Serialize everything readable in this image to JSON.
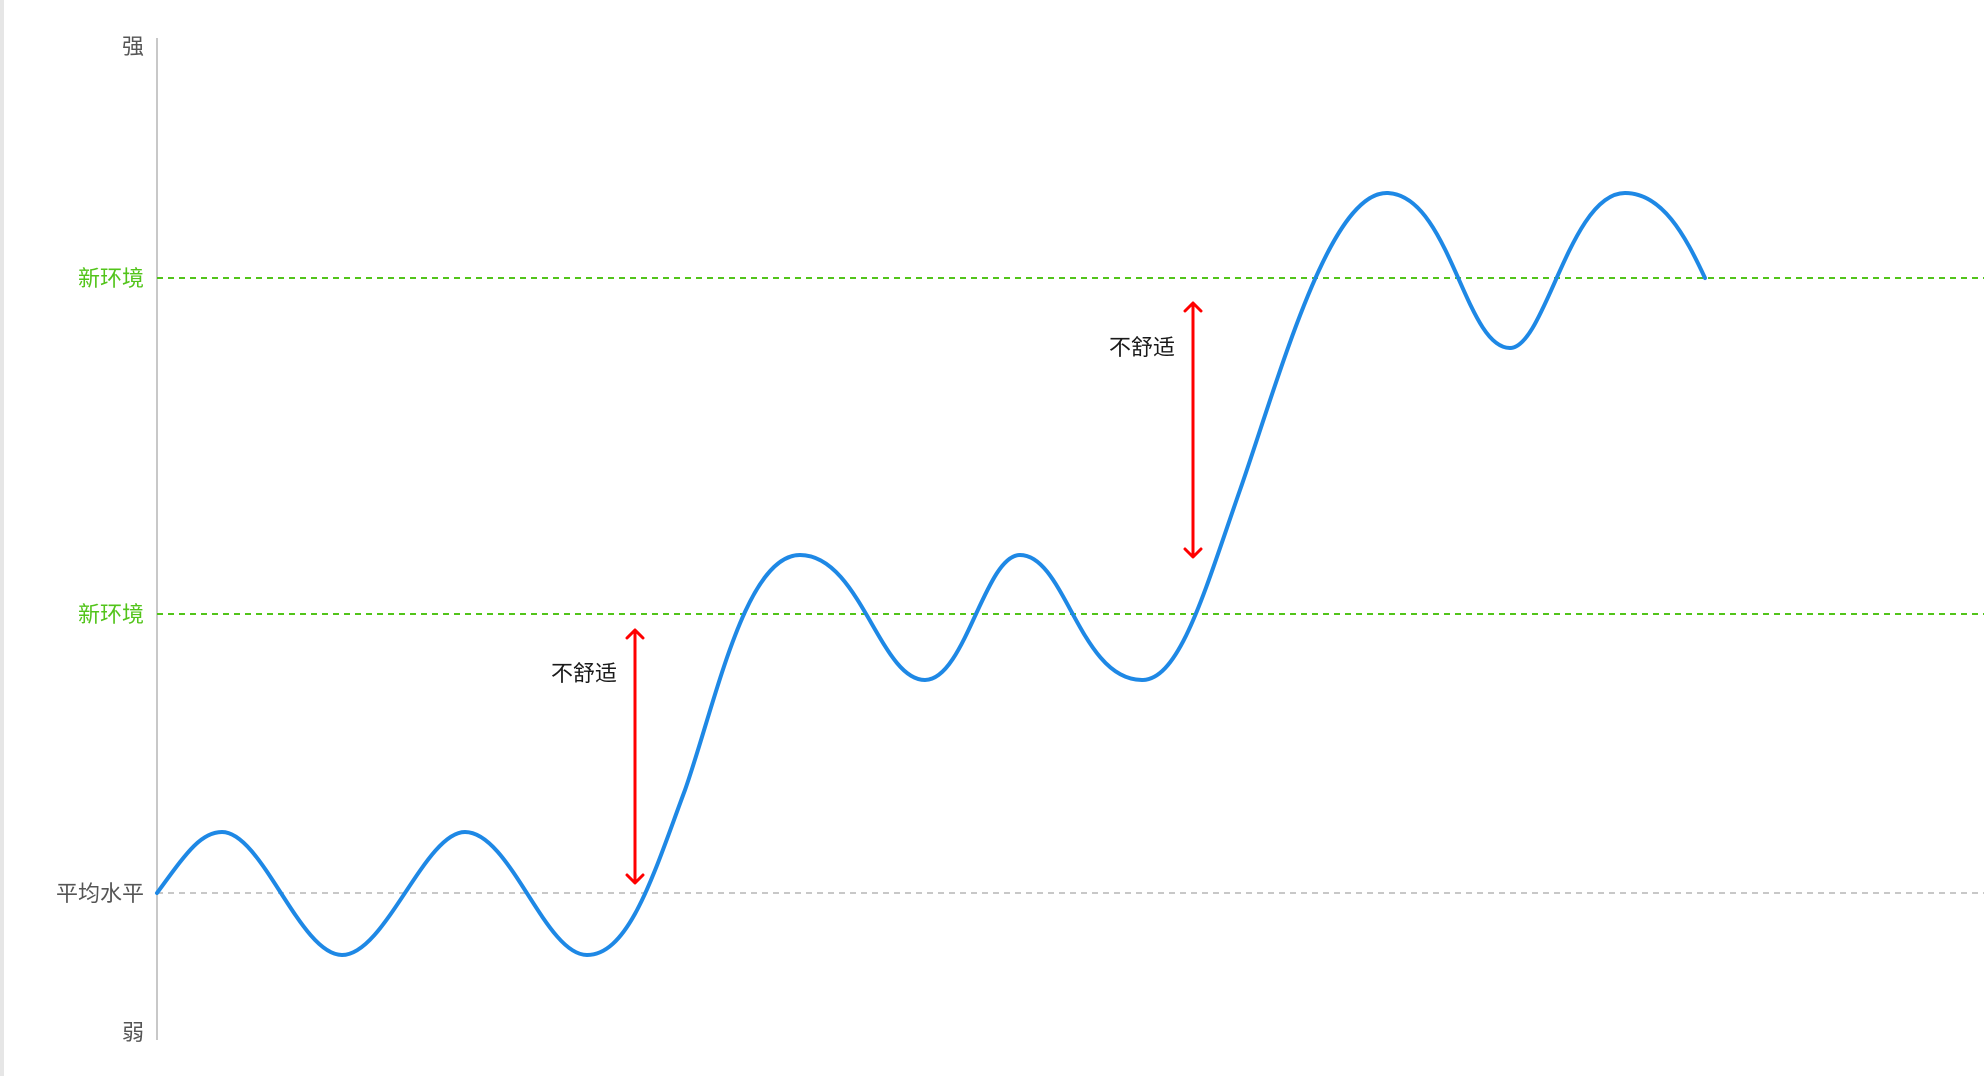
{
  "axis": {
    "top_label": "强",
    "bottom_label": "弱"
  },
  "levels": {
    "average": {
      "label": "平均水平",
      "color": "#c8c8c8"
    },
    "new_env_1": {
      "label": "新环境",
      "color": "#52c41a"
    },
    "new_env_2": {
      "label": "新环境",
      "color": "#52c41a"
    }
  },
  "annotations": {
    "discomfort_1": {
      "label": "不舒适",
      "color": "#ff0000"
    },
    "discomfort_2": {
      "label": "不舒适",
      "color": "#ff0000"
    }
  },
  "curve": {
    "color": "#1e88e5"
  }
}
